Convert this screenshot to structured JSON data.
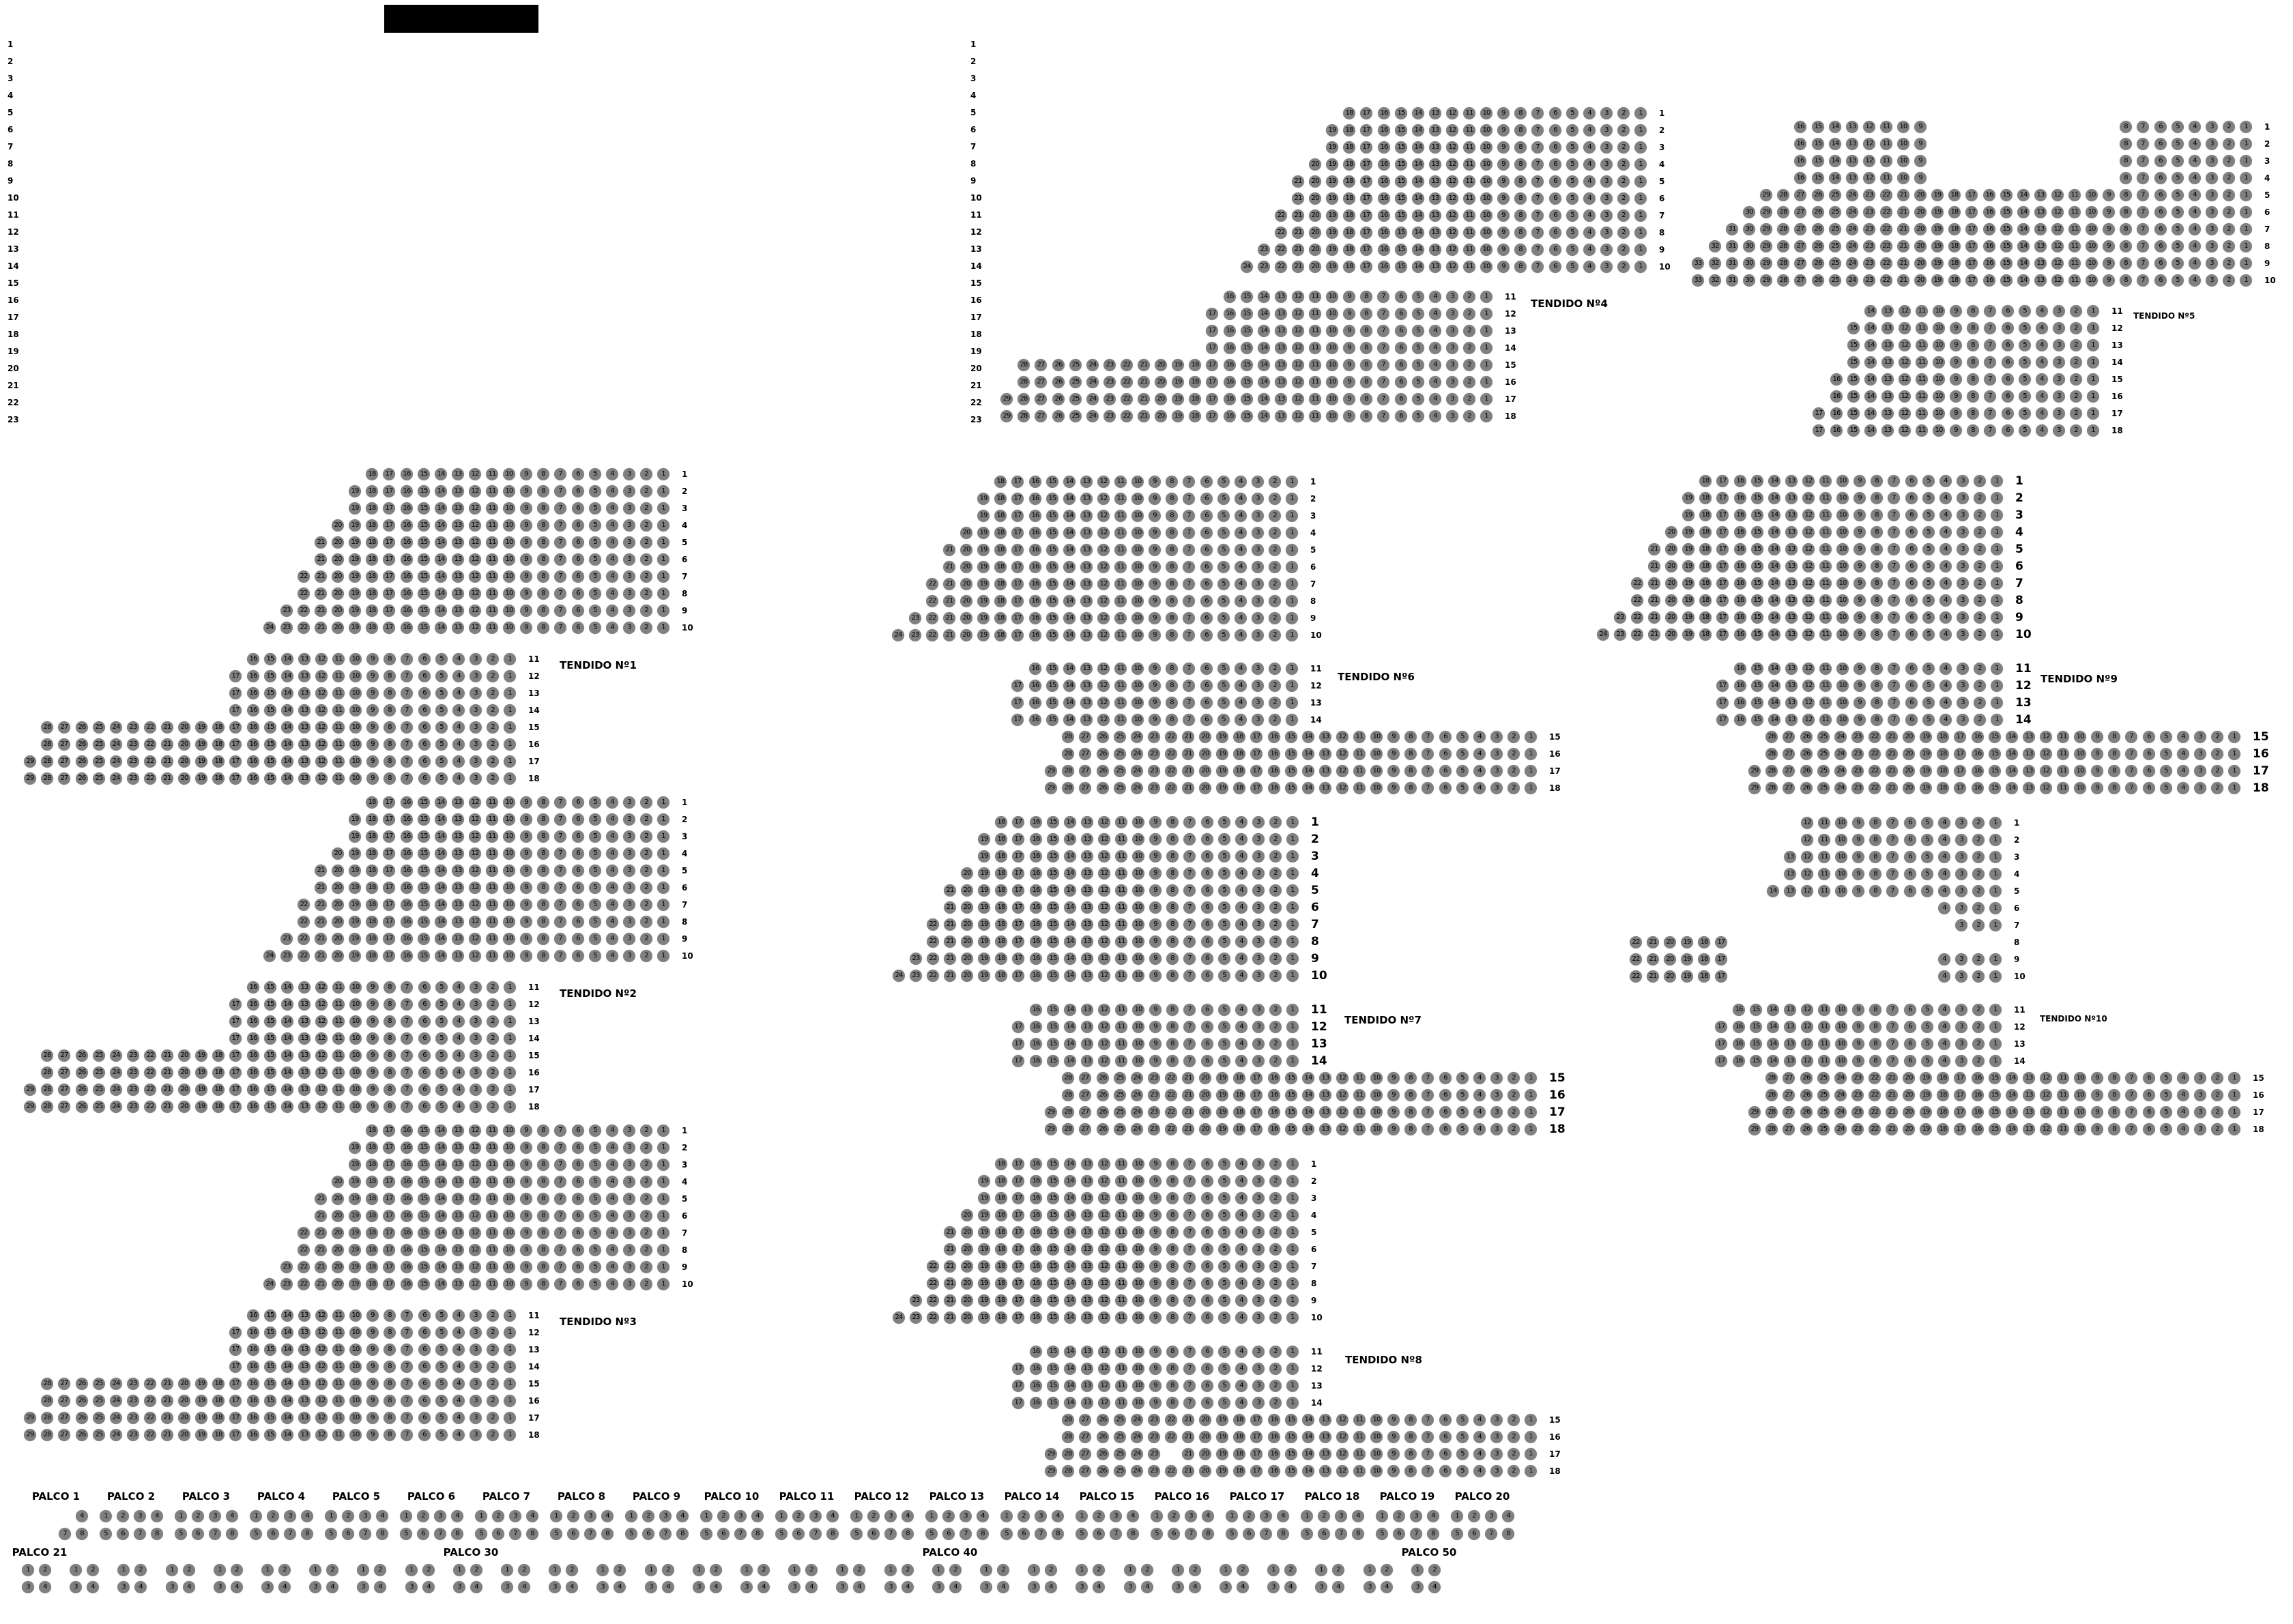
{
  "colors": {
    "seat": "#808080",
    "seat_text": "#000000",
    "label": "#000000",
    "redacted": "#000000"
  },
  "row_index_left": [
    "1",
    "2",
    "3",
    "4",
    "5",
    "6",
    "7",
    "8",
    "9",
    "10",
    "11",
    "12",
    "13",
    "14",
    "15",
    "16",
    "17",
    "18",
    "19",
    "20",
    "21",
    "22",
    "23"
  ],
  "row_index_middle": [
    "1",
    "2",
    "3",
    "4",
    "5",
    "6",
    "7",
    "8",
    "9",
    "10",
    "11",
    "12",
    "13",
    "14",
    "15",
    "16",
    "17",
    "18",
    "19",
    "20",
    "21",
    "22",
    "23"
  ],
  "sections": [
    {
      "name": "TENDIDO Nº1",
      "rows": [
        [
          "1",
          18
        ],
        [
          "2",
          19
        ],
        [
          "3",
          19
        ],
        [
          "4",
          20
        ],
        [
          "5",
          21
        ],
        [
          "6",
          21
        ],
        [
          "7",
          22
        ],
        [
          "8",
          22
        ],
        [
          "9",
          23
        ],
        [
          "10",
          24
        ],
        [
          "11",
          16
        ],
        [
          "12",
          17
        ],
        [
          "13",
          17
        ],
        [
          "14",
          17
        ],
        [
          "15",
          28
        ],
        [
          "16",
          28
        ],
        [
          "17",
          29
        ],
        [
          "18",
          29
        ]
      ]
    },
    {
      "name": "TENDIDO Nº2",
      "rows": [
        [
          "1",
          18
        ],
        [
          "2",
          19
        ],
        [
          "3",
          19
        ],
        [
          "4",
          20
        ],
        [
          "5",
          21
        ],
        [
          "6",
          21
        ],
        [
          "7",
          22
        ],
        [
          "8",
          22
        ],
        [
          "9",
          23
        ],
        [
          "10",
          24
        ],
        [
          "11",
          16
        ],
        [
          "12",
          17
        ],
        [
          "13",
          17
        ],
        [
          "14",
          17
        ],
        [
          "15",
          28
        ],
        [
          "16",
          28
        ],
        [
          "17",
          29
        ],
        [
          "18",
          29
        ]
      ]
    },
    {
      "name": "TENDIDO Nº3",
      "rows": [
        [
          "1",
          18
        ],
        [
          "2",
          19
        ],
        [
          "3",
          19
        ],
        [
          "4",
          20
        ],
        [
          "5",
          21
        ],
        [
          "6",
          21
        ],
        [
          "7",
          22
        ],
        [
          "8",
          22
        ],
        [
          "9",
          23
        ],
        [
          "10",
          24
        ],
        [
          "11",
          16
        ],
        [
          "12",
          17
        ],
        [
          "13",
          17
        ],
        [
          "14",
          17
        ],
        [
          "15",
          28
        ],
        [
          "16",
          28
        ],
        [
          "17",
          29
        ],
        [
          "18",
          29
        ]
      ]
    },
    {
      "name": "TENDIDO Nº4",
      "rows": [
        [
          "1",
          18
        ],
        [
          "2",
          19
        ],
        [
          "3",
          19
        ],
        [
          "4",
          20
        ],
        [
          "5",
          21
        ],
        [
          "6",
          21
        ],
        [
          "7",
          22
        ],
        [
          "8",
          22
        ],
        [
          "9",
          23
        ],
        [
          "10",
          24
        ],
        [
          "11",
          16
        ],
        [
          "12",
          17
        ],
        [
          "13",
          17
        ],
        [
          "14",
          17
        ],
        [
          "15",
          28
        ],
        [
          "16",
          28
        ],
        [
          "17",
          29
        ],
        [
          "18",
          29
        ]
      ]
    },
    {
      "name": "TENDIDO Nº5",
      "rows": [
        [
          "1",
          0,
          [
            [
              1,
              8
            ],
            [
              9,
              16,
              11
            ]
          ]
        ],
        [
          "2",
          0,
          [
            [
              1,
              8
            ],
            [
              9,
              16,
              11
            ]
          ]
        ],
        [
          "3",
          0,
          [
            [
              1,
              8
            ],
            [
              9,
              16,
              11
            ]
          ]
        ],
        [
          "4",
          0,
          [
            [
              1,
              8
            ],
            [
              9,
              16,
              11
            ]
          ]
        ],
        [
          "5",
          29
        ],
        [
          "6",
          30
        ],
        [
          "7",
          31
        ],
        [
          "8",
          32
        ],
        [
          "9",
          33
        ],
        [
          "10",
          33
        ],
        [
          "11",
          14
        ],
        [
          "12",
          15
        ],
        [
          "13",
          15
        ],
        [
          "14",
          15
        ],
        [
          "15",
          16
        ],
        [
          "16",
          16
        ],
        [
          "17",
          17
        ],
        [
          "18",
          17
        ]
      ]
    },
    {
      "name": "TENDIDO Nº6",
      "rows": [
        [
          "1",
          18
        ],
        [
          "2",
          19
        ],
        [
          "3",
          19
        ],
        [
          "4",
          20
        ],
        [
          "5",
          21
        ],
        [
          "6",
          21
        ],
        [
          "7",
          22
        ],
        [
          "8",
          22
        ],
        [
          "9",
          23
        ],
        [
          "10",
          24
        ],
        [
          "11",
          16
        ],
        [
          "12",
          17
        ],
        [
          "13",
          17
        ],
        [
          "14",
          17
        ],
        [
          "15",
          28
        ],
        [
          "16",
          28
        ],
        [
          "17",
          29
        ],
        [
          "18",
          29
        ]
      ]
    },
    {
      "name": "TENDIDO Nº7",
      "rows": [
        [
          "1",
          18
        ],
        [
          "2",
          19
        ],
        [
          "3",
          19
        ],
        [
          "4",
          20
        ],
        [
          "5",
          21
        ],
        [
          "6",
          21
        ],
        [
          "7",
          22
        ],
        [
          "8",
          22
        ],
        [
          "9",
          23
        ],
        [
          "10",
          24
        ],
        [
          "11",
          16
        ],
        [
          "12",
          17
        ],
        [
          "13",
          17
        ],
        [
          "14",
          17
        ],
        [
          "15",
          28
        ],
        [
          "16",
          28
        ],
        [
          "17",
          29
        ],
        [
          "18",
          29
        ]
      ]
    },
    {
      "name": "TENDIDO Nº8",
      "rows": [
        [
          "1",
          18
        ],
        [
          "2",
          19
        ],
        [
          "3",
          19
        ],
        [
          "4",
          20
        ],
        [
          "5",
          21
        ],
        [
          "6",
          21
        ],
        [
          "7",
          22
        ],
        [
          "8",
          22
        ],
        [
          "9",
          23
        ],
        [
          "10",
          24
        ],
        [
          "11",
          16
        ],
        [
          "12",
          17
        ],
        [
          "13",
          17
        ],
        [
          "14",
          17
        ],
        [
          "15",
          28
        ],
        [
          "16",
          28
        ],
        [
          "17",
          0,
          [
            [
              1,
              21
            ],
            [
              23,
              29
            ]
          ]
        ],
        [
          "18",
          29
        ]
      ]
    },
    {
      "name": "TENDIDO Nº9",
      "rows": [
        [
          "1",
          18
        ],
        [
          "2",
          19
        ],
        [
          "3",
          19
        ],
        [
          "4",
          20
        ],
        [
          "5",
          21
        ],
        [
          "6",
          21
        ],
        [
          "7",
          22
        ],
        [
          "8",
          22
        ],
        [
          "9",
          23
        ],
        [
          "10",
          24
        ],
        [
          "11",
          16
        ],
        [
          "12",
          17
        ],
        [
          "13",
          17
        ],
        [
          "14",
          17
        ],
        [
          "15",
          28
        ],
        [
          "16",
          28
        ],
        [
          "17",
          29
        ],
        [
          "18",
          29
        ]
      ]
    },
    {
      "name": "TENDIDO Nº10",
      "rows": [
        [
          "1",
          12
        ],
        [
          "2",
          12
        ],
        [
          "3",
          13
        ],
        [
          "4",
          13
        ],
        [
          "5",
          14
        ],
        [
          "6",
          4
        ],
        [
          "7",
          3
        ],
        [
          "8",
          0,
          [
            [
              17,
              22
            ]
          ]
        ],
        [
          "9",
          0,
          [
            [
              1,
              4
            ],
            [
              17,
              22
            ]
          ]
        ],
        [
          "10",
          0,
          [
            [
              1,
              4
            ],
            [
              17,
              22
            ]
          ]
        ],
        [
          "11",
          16
        ],
        [
          "12",
          17
        ],
        [
          "13",
          17
        ],
        [
          "14",
          17
        ],
        [
          "15",
          28
        ],
        [
          "16",
          28
        ],
        [
          "17",
          29
        ],
        [
          "18",
          29
        ]
      ]
    }
  ],
  "palcos_upper": [
    {
      "name": "PALCO 1",
      "top": [
        null,
        null,
        null,
        4
      ],
      "bottom": [
        null,
        null,
        7,
        8
      ]
    },
    {
      "name": "PALCO 2",
      "top": [
        1,
        2,
        3,
        4
      ],
      "bottom": [
        5,
        6,
        7,
        8
      ]
    },
    {
      "name": "PALCO 3",
      "top": [
        1,
        2,
        3,
        4
      ],
      "bottom": [
        5,
        6,
        7,
        8
      ]
    },
    {
      "name": "PALCO 4",
      "top": [
        1,
        2,
        3,
        4
      ],
      "bottom": [
        5,
        6,
        7,
        8
      ]
    },
    {
      "name": "PALCO 5",
      "top": [
        1,
        2,
        3,
        4
      ],
      "bottom": [
        5,
        6,
        7,
        8
      ]
    },
    {
      "name": "PALCO 6",
      "top": [
        1,
        2,
        3,
        4
      ],
      "bottom": [
        5,
        6,
        7,
        8
      ]
    },
    {
      "name": "PALCO 7",
      "top": [
        1,
        2,
        3,
        4
      ],
      "bottom": [
        5,
        6,
        7,
        8
      ]
    },
    {
      "name": "PALCO 8",
      "top": [
        1,
        2,
        3,
        4
      ],
      "bottom": [
        5,
        6,
        7,
        8
      ]
    },
    {
      "name": "PALCO 9",
      "top": [
        1,
        2,
        3,
        4
      ],
      "bottom": [
        5,
        6,
        7,
        8
      ]
    },
    {
      "name": "PALCO 10",
      "top": [
        1,
        2,
        3,
        4
      ],
      "bottom": [
        5,
        6,
        7,
        8
      ]
    },
    {
      "name": "PALCO 11",
      "top": [
        1,
        2,
        3,
        4
      ],
      "bottom": [
        5,
        6,
        7,
        8
      ]
    },
    {
      "name": "PALCO 12",
      "top": [
        1,
        2,
        3,
        4
      ],
      "bottom": [
        5,
        6,
        7,
        8
      ]
    },
    {
      "name": "PALCO 13",
      "top": [
        1,
        2,
        3,
        4
      ],
      "bottom": [
        5,
        6,
        7,
        8
      ]
    },
    {
      "name": "PALCO 14",
      "top": [
        1,
        2,
        3,
        4
      ],
      "bottom": [
        5,
        6,
        7,
        8
      ]
    },
    {
      "name": "PALCO 15",
      "top": [
        1,
        2,
        3,
        4
      ],
      "bottom": [
        5,
        6,
        7,
        8
      ]
    },
    {
      "name": "PALCO 16",
      "top": [
        1,
        2,
        3,
        4
      ],
      "bottom": [
        5,
        6,
        7,
        8
      ]
    },
    {
      "name": "PALCO 17",
      "top": [
        1,
        2,
        3,
        4
      ],
      "bottom": [
        5,
        6,
        7,
        8
      ]
    },
    {
      "name": "PALCO 18",
      "top": [
        1,
        2,
        3,
        4
      ],
      "bottom": [
        5,
        6,
        7,
        8
      ]
    },
    {
      "name": "PALCO 19",
      "top": [
        1,
        2,
        3,
        4
      ],
      "bottom": [
        5,
        6,
        7,
        8
      ]
    },
    {
      "name": "PALCO 20",
      "top": [
        1,
        2,
        3,
        4
      ],
      "bottom": [
        5,
        6,
        7,
        8
      ]
    }
  ],
  "palcos_lower": {
    "count": 30,
    "seats_top": [
      1,
      2
    ],
    "seats_bottom": [
      3,
      4
    ],
    "visible_labels": [
      {
        "position": 1,
        "name": "PALCO 21"
      },
      {
        "position": 10,
        "name": "PALCO 30"
      },
      {
        "position": 20,
        "name": "PALCO 40"
      },
      {
        "position": 30,
        "name": "PALCO 50"
      }
    ]
  }
}
